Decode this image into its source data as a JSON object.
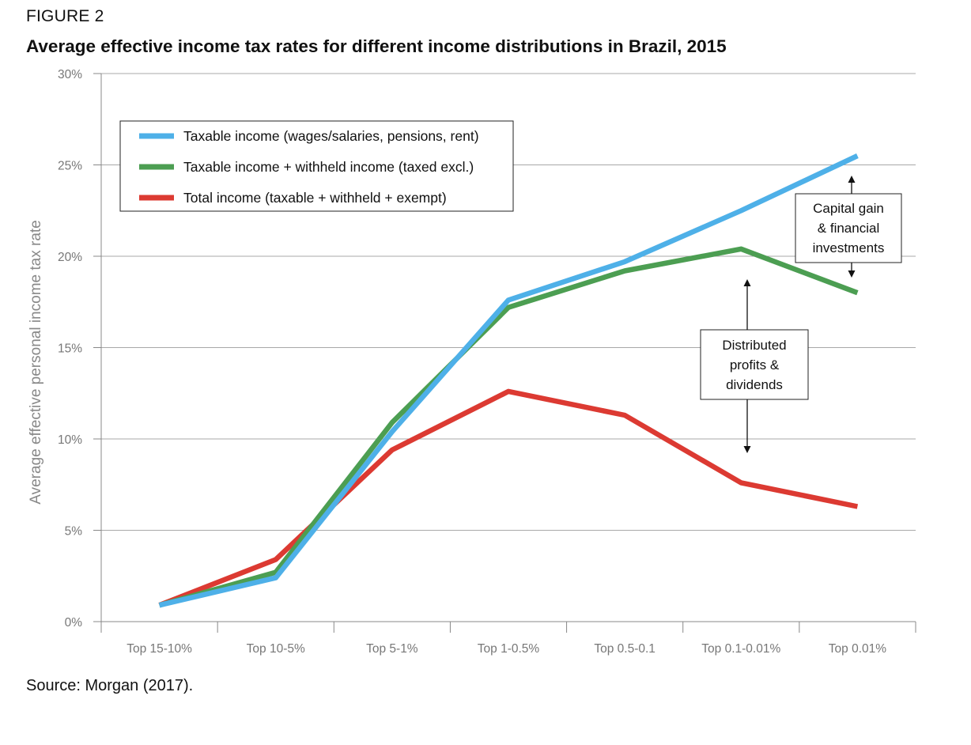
{
  "figure_label": "FIGURE 2",
  "title": "Average effective income tax rates for different income distributions in Brazil, 2015",
  "source": "Source: Morgan (2017).",
  "chart_data": {
    "type": "line",
    "title": "Average effective income tax rates for different income distributions in Brazil, 2015",
    "xlabel": "",
    "ylabel": "Average effective personal income tax rate",
    "ylim": [
      0,
      30
    ],
    "yticks": [
      "0%",
      "5%",
      "10%",
      "15%",
      "20%",
      "25%",
      "30%"
    ],
    "grid": true,
    "legend_position": "top-left",
    "categories": [
      "Top 15-10%",
      "Top 10-5%",
      "Top 5-1%",
      "Top 1-0.5%",
      "Top 0.5-0.1",
      "Top 0.1-0.01%",
      "Top 0.01%"
    ],
    "series": [
      {
        "name": "Taxable income (wages/salaries, pensions, rent)",
        "color": "#4EB0E8",
        "values": [
          0.9,
          2.4,
          10.4,
          17.6,
          19.7,
          22.5,
          25.5
        ]
      },
      {
        "name": "Taxable income + withheld income (taxed excl.)",
        "color": "#4C9E52",
        "values": [
          0.9,
          2.7,
          10.9,
          17.2,
          19.2,
          20.4,
          18.0
        ]
      },
      {
        "name": "Total income (taxable + withheld + exempt)",
        "color": "#DC3A32",
        "values": [
          0.9,
          3.4,
          9.4,
          12.6,
          11.3,
          7.6,
          6.3
        ]
      }
    ],
    "annotations": [
      {
        "lines": [
          "Capital gain",
          "& financial",
          "investments"
        ]
      },
      {
        "lines": [
          "Distributed",
          "profits &",
          "dividends"
        ]
      }
    ]
  }
}
